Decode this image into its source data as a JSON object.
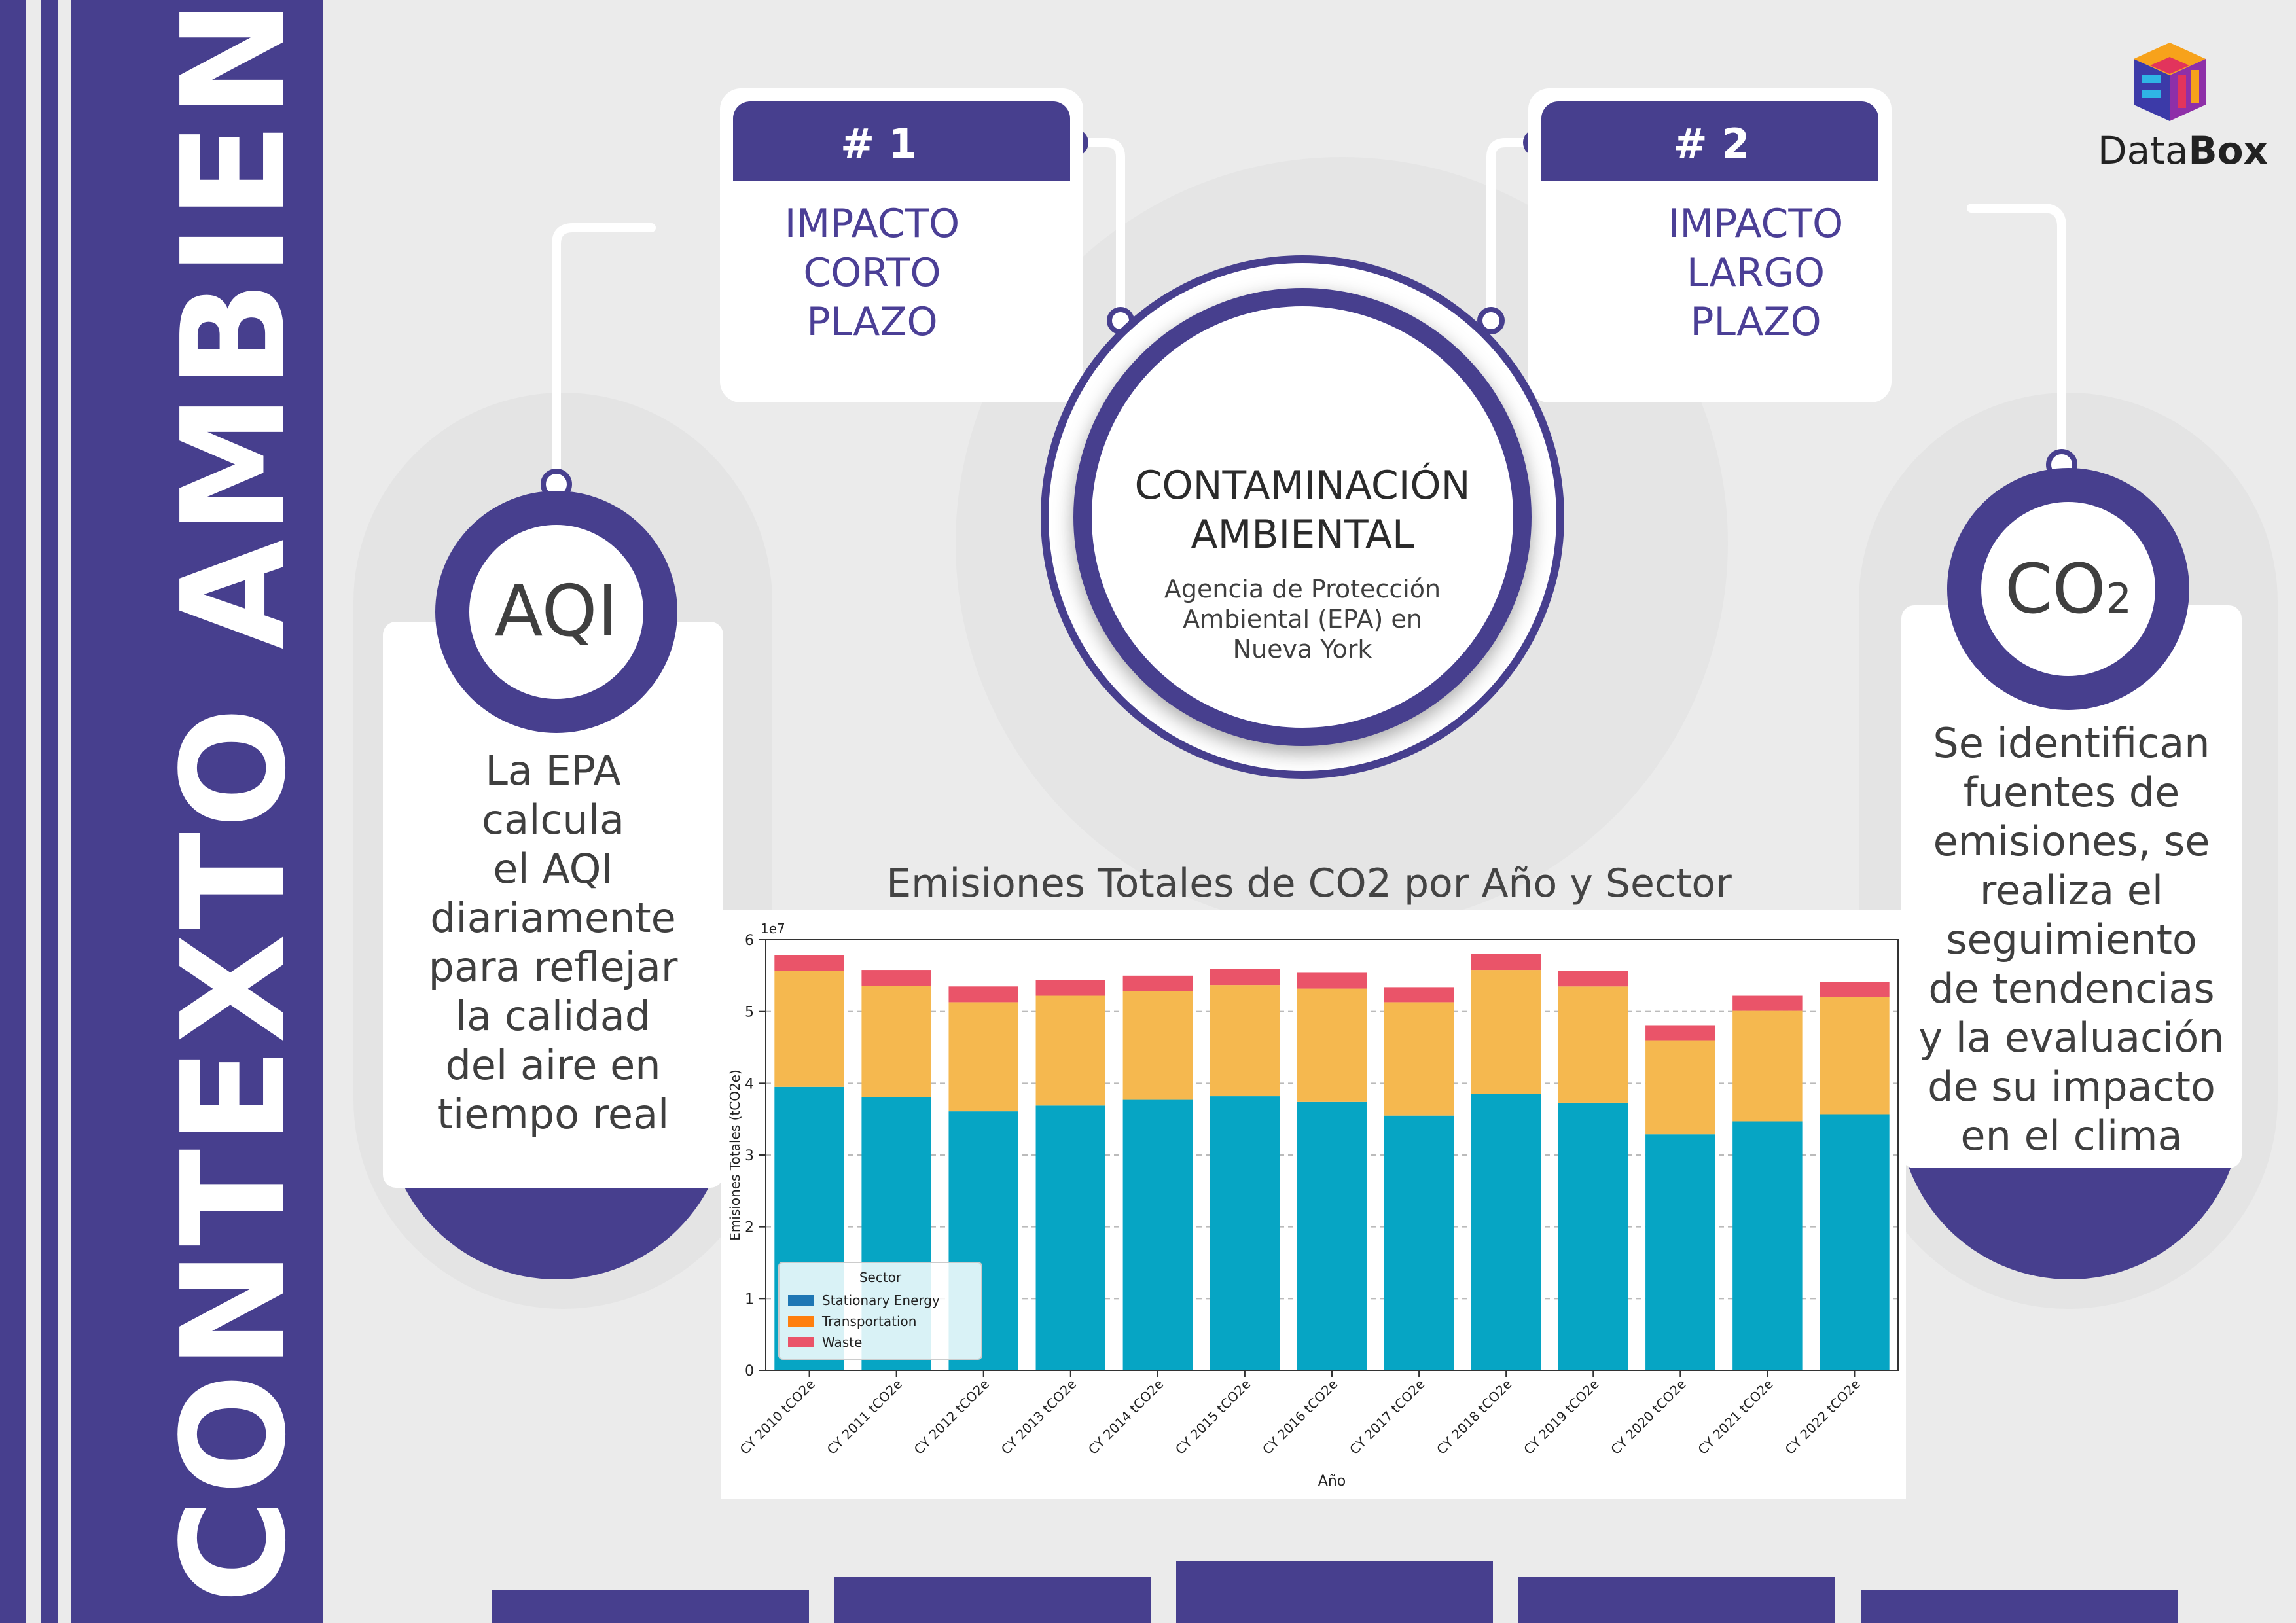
{
  "side_title": "CONTEXTO AMBIENTAL",
  "logo": {
    "text_light": "Data",
    "text_bold": "Box",
    "icon": "cube-logo-icon"
  },
  "impact_1": {
    "badge": "# 1",
    "lines": [
      "IMPACTO",
      "CORTO",
      "PLAZO"
    ]
  },
  "impact_2": {
    "badge": "# 2",
    "lines": [
      "IMPACTO",
      "LARGO",
      "PLAZO"
    ]
  },
  "center": {
    "title_lines": [
      "CONTAMINACIÓN",
      "AMBIENTAL"
    ],
    "subtitle_lines": [
      "Agencia de Protección",
      "Ambiental (EPA) en",
      "Nueva York"
    ]
  },
  "aqi": {
    "label": "AQI",
    "lines": [
      "La EPA",
      "calcula",
      "el AQI",
      "diariamente",
      "para reflejar",
      "la calidad",
      "del aire en",
      "tiempo real"
    ]
  },
  "co2": {
    "label": "CO",
    "subscript": "2",
    "lines": [
      "Se identifican",
      "fuentes de",
      "emisiones, se",
      "realiza el",
      "seguimiento",
      "de tendencias",
      "y la evaluación",
      "de su impacto",
      "en el clima"
    ]
  },
  "chart_data": {
    "type": "bar",
    "stacked": true,
    "title": "Emisiones Totales de CO2 por Año y Sector",
    "xlabel": "Año",
    "ylabel": "Emisiones Totales (tCO2e)",
    "y_multiplier": "1e7",
    "ylim": [
      0,
      6
    ],
    "yticks": [
      0,
      1,
      2,
      3,
      4,
      5,
      6
    ],
    "grid": true,
    "legend": {
      "title": "Sector",
      "placement": "lower-left"
    },
    "categories": [
      "CY 2010 tCO2e",
      "CY 2011 tCO2e",
      "CY 2012 tCO2e",
      "CY 2013 tCO2e",
      "CY 2014 tCO2e",
      "CY 2015 tCO2e",
      "CY 2016 tCO2e",
      "CY 2017 tCO2e",
      "CY 2018 tCO2e",
      "CY 2019 tCO2e",
      "CY 2020 tCO2e",
      "CY 2021 tCO2e",
      "CY 2022 tCO2e"
    ],
    "series": [
      {
        "name": "Stationary Energy",
        "color": "#06a5c4",
        "legend_color": "#1f77b4",
        "values": [
          3.95,
          3.81,
          3.61,
          3.69,
          3.77,
          3.82,
          3.74,
          3.55,
          3.85,
          3.73,
          3.29,
          3.47,
          3.57
        ]
      },
      {
        "name": "Transportation",
        "color": "#f5b84f",
        "legend_color": "#ff7f0e",
        "values": [
          1.62,
          1.55,
          1.52,
          1.53,
          1.51,
          1.55,
          1.58,
          1.58,
          1.73,
          1.62,
          1.31,
          1.54,
          1.63
        ]
      },
      {
        "name": "Waste",
        "color": "#ea5469",
        "legend_color": "#ea5469",
        "values": [
          0.22,
          0.22,
          0.22,
          0.22,
          0.22,
          0.22,
          0.22,
          0.21,
          0.22,
          0.22,
          0.21,
          0.21,
          0.21
        ]
      }
    ]
  }
}
